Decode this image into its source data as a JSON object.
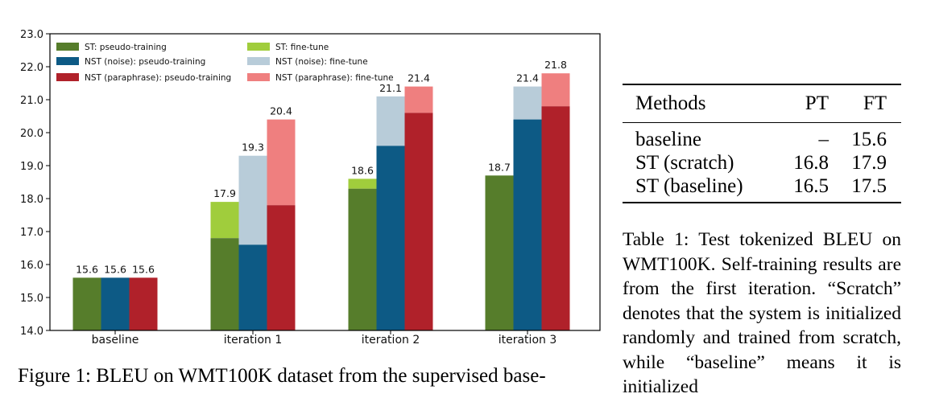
{
  "chart_data": {
    "type": "bar",
    "stacked_pairs": true,
    "categories": [
      "baseline",
      "iteration 1",
      "iteration 2",
      "iteration 3"
    ],
    "ylim": [
      14.0,
      23.0
    ],
    "yticks": [
      "14.0",
      "15.0",
      "16.0",
      "17.0",
      "18.0",
      "19.0",
      "20.0",
      "21.0",
      "22.0",
      "23.0"
    ],
    "legend_position": "top-left",
    "series": [
      {
        "name": "ST",
        "pt_label": "ST: pseudo-training",
        "ft_label": "ST: fine-tune",
        "pt_color": "#567d2b",
        "ft_color": "#a0cd3c",
        "pseudo_training": [
          15.6,
          16.8,
          18.3,
          18.7
        ],
        "fine_tune": [
          15.6,
          17.9,
          18.6,
          18.7
        ]
      },
      {
        "name": "NST (noise)",
        "pt_label": "NST (noise): pseudo-training",
        "ft_label": "NST (noise): fine-tune",
        "pt_color": "#0d5a85",
        "ft_color": "#b8ccd9",
        "pseudo_training": [
          15.6,
          16.6,
          19.6,
          20.4
        ],
        "fine_tune": [
          15.6,
          19.3,
          21.1,
          21.4
        ]
      },
      {
        "name": "NST (paraphrase)",
        "pt_label": "NST (paraphrase): pseudo-training",
        "ft_label": "NST (paraphrase): fine-tune",
        "pt_color": "#b0212a",
        "ft_color": "#ef7f7f",
        "pseudo_training": [
          15.6,
          17.8,
          20.6,
          20.8
        ],
        "fine_tune": [
          15.6,
          20.4,
          21.4,
          21.8
        ]
      }
    ],
    "data_labels": [
      [
        "15.6",
        "15.6",
        "15.6"
      ],
      [
        "17.9",
        "19.3",
        "20.4"
      ],
      [
        "18.6",
        "21.1",
        "21.4"
      ],
      [
        "18.7",
        "21.4",
        "21.8"
      ]
    ]
  },
  "figure_caption": "Figure 1: BLEU on WMT100K dataset from the supervised base-",
  "table": {
    "headers": [
      "Methods",
      "PT",
      "FT"
    ],
    "rows": [
      [
        "baseline",
        "–",
        "15.6"
      ],
      [
        "ST (scratch)",
        "16.8",
        "17.9"
      ],
      [
        "ST (baseline)",
        "16.5",
        "17.5"
      ]
    ]
  },
  "table_caption": "Table 1: Test tokenized BLEU on WMT100K. Self-training results are from the first iteration. “Scratch” denotes that the system is initialized randomly and trained from scratch, while “baseline” means it is initialized"
}
